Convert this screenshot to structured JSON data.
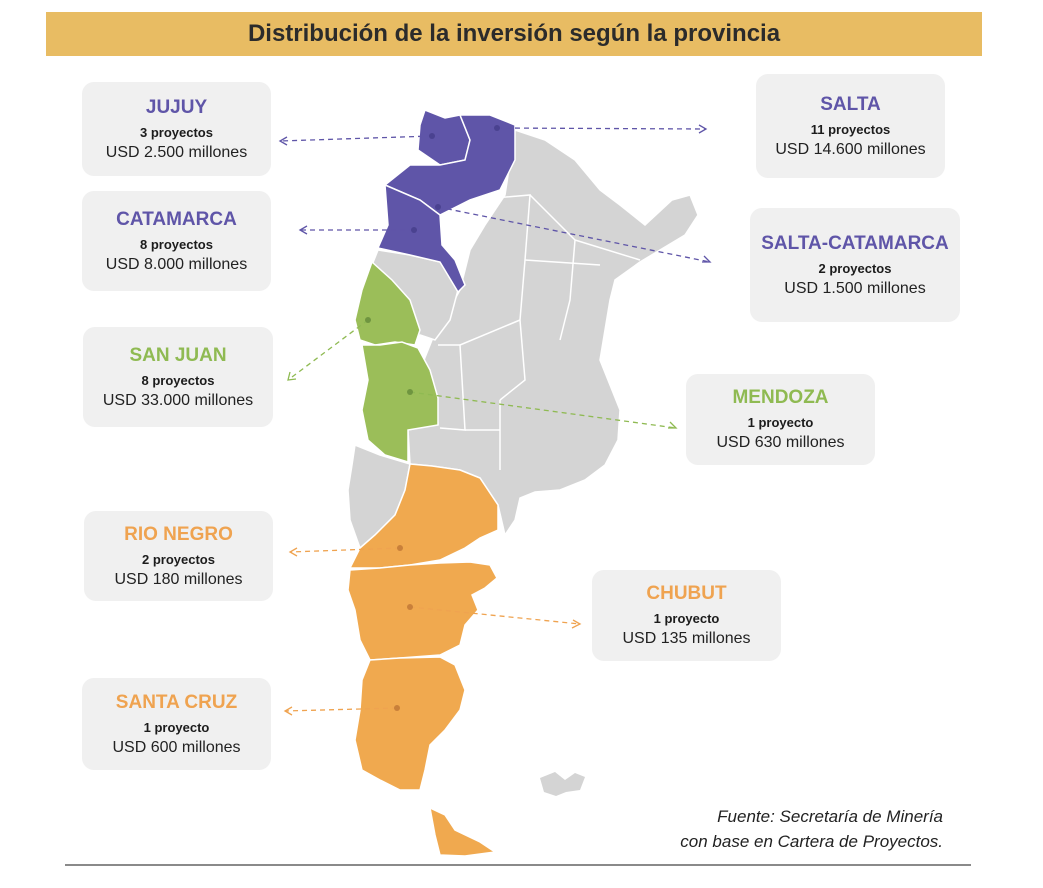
{
  "title": "Distribución de la inversión según la provincia",
  "colors": {
    "purple": "#5f55a8",
    "green": "#8fba52",
    "orange": "#efa350",
    "gray": "#d4d4d4",
    "title_bg": "#e8bc63"
  },
  "provinces": {
    "jujuy": {
      "name": "JUJUY",
      "count": "3 proyectos",
      "amount": "USD 2.500 millones"
    },
    "salta": {
      "name": "SALTA",
      "count": "11 proyectos",
      "amount": "USD 14.600 millones"
    },
    "catamarca": {
      "name": "CATAMARCA",
      "count": "8 proyectos",
      "amount": "USD 8.000 millones"
    },
    "salta_catamarca": {
      "name": "SALTA-CATAMARCA",
      "count": "2 proyectos",
      "amount": "USD 1.500 millones"
    },
    "san_juan": {
      "name": "SAN JUAN",
      "count": "8 proyectos",
      "amount": "USD 33.000 millones"
    },
    "mendoza": {
      "name": "MENDOZA",
      "count": "1 proyecto",
      "amount": "USD 630 millones"
    },
    "rio_negro": {
      "name": "RIO NEGRO",
      "count": "2 proyectos",
      "amount": "USD 180 millones"
    },
    "chubut": {
      "name": "CHUBUT",
      "count": "1 proyecto",
      "amount": "USD 135 millones"
    },
    "santa_cruz": {
      "name": "SANTA CRUZ",
      "count": "1 proyecto",
      "amount": "USD 600 millones"
    }
  },
  "source": {
    "line1": "Fuente: Secretaría de Minería",
    "line2": "con base en Cartera de Proyectos."
  }
}
